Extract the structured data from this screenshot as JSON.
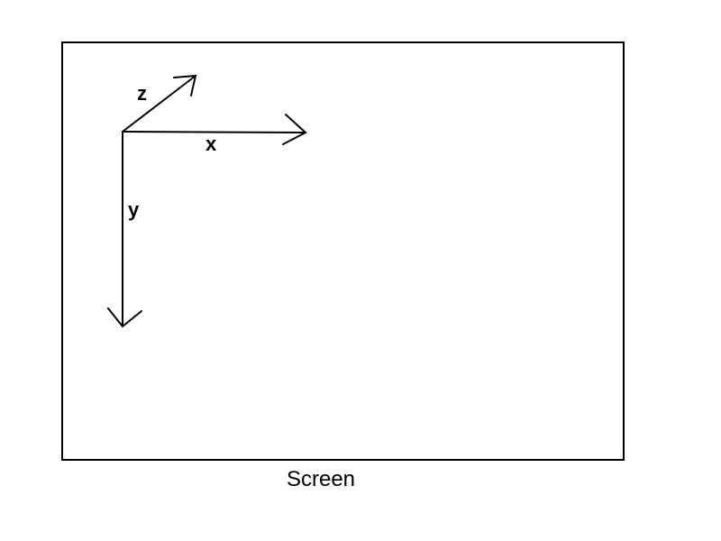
{
  "diagram": {
    "axes": {
      "x_label": "x",
      "y_label": "y",
      "z_label": "z"
    },
    "caption": "Screen"
  },
  "colors": {
    "stroke": "#000000",
    "background": "#ffffff"
  }
}
